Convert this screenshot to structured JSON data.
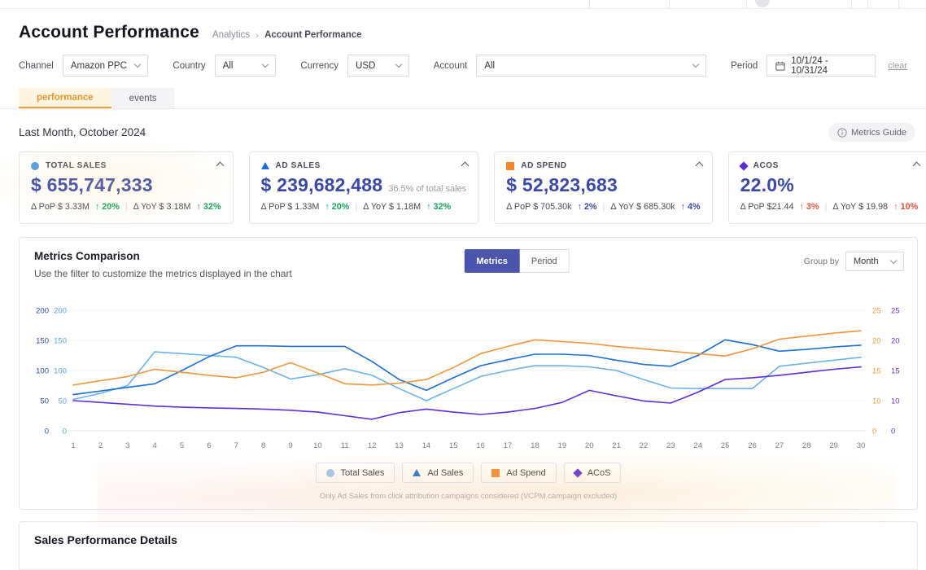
{
  "header": {
    "title": "Account Performance",
    "breadcrumb": {
      "parent": "Analytics",
      "separator": "›",
      "current": "Account Performance"
    }
  },
  "filters": {
    "channel": {
      "label": "Channel",
      "value": "Amazon PPC"
    },
    "country": {
      "label": "Country",
      "value": "All"
    },
    "currency": {
      "label": "Currency",
      "value": "USD"
    },
    "account": {
      "label": "Account",
      "value": "All"
    },
    "period": {
      "label": "Period",
      "value": "10/1/24 - 10/31/24"
    },
    "clear_label": "clear"
  },
  "tabs": {
    "performance": "performance",
    "events": "events"
  },
  "section": {
    "title": "Last Month, October 2024",
    "guide_label": "Metrics Guide"
  },
  "cards": [
    {
      "label": "TOTAL SALES",
      "value": "$ 655,747,333",
      "suffix": "",
      "pop_label": "Δ PoP $ 3.33M",
      "pop_delta": "↑ 20%",
      "yoy_label": "Δ YoY $ 3.18M",
      "yoy_delta": "↑ 32%",
      "delta_color": "#17a35c",
      "marker_color": "#519fdd"
    },
    {
      "label": "AD SALES",
      "value": "$ 239,682,488",
      "suffix": "36.5% of total sales",
      "pop_label": "Δ PoP $ 1.33M",
      "pop_delta": "↑ 20%",
      "yoy_label": "Δ YoY $ 1.18M",
      "yoy_delta": "↑ 32%",
      "delta_color": "#17a35c",
      "marker_color": "#1e6fd2"
    },
    {
      "label": "AD SPEND",
      "value": "$ 52,823,683",
      "suffix": "",
      "pop_label": "Δ PoP $ 705.30k",
      "pop_delta": "↑ 2%",
      "yoy_label": "Δ YoY $ 685.30k",
      "yoy_delta": "↑ 4%",
      "delta_color": "#3b49a5",
      "marker_color": "#f0892c"
    },
    {
      "label": "ACOS",
      "value": "22.0%",
      "suffix": "",
      "pop_label": "Δ PoP $21.44",
      "pop_delta": "↑ 3%",
      "yoy_label": "Δ YoY $ 19.98",
      "yoy_delta": "↑ 10%",
      "delta_color": "#e8503a",
      "marker_color": "#5b2fd4"
    }
  ],
  "comparison": {
    "title": "Metrics Comparison",
    "subtitle": "Use the filter to customize the metrics displayed in the chart",
    "toggle": {
      "metrics": "Metrics",
      "period": "Period"
    },
    "group_by": {
      "label": "Group by",
      "value": "Month"
    },
    "footnote": "Only Ad Sales from click attribution campaigns considered (VCPM campaign excluded)"
  },
  "chart_data": {
    "type": "line",
    "title": "Metrics Comparison",
    "x": [
      1,
      2,
      3,
      4,
      5,
      6,
      7,
      8,
      9,
      10,
      11,
      12,
      13,
      14,
      15,
      16,
      17,
      18,
      19,
      20,
      21,
      22,
      23,
      24,
      25,
      26,
      27,
      28,
      29,
      30
    ],
    "series": [
      {
        "name": "Total Sales",
        "axis": "left",
        "color": "#6cb2ea",
        "values": [
          52,
          62,
          75,
          131,
          128,
          125,
          122,
          105,
          86,
          93,
          103,
          92,
          70,
          50,
          70,
          90,
          100,
          108,
          108,
          106,
          100,
          85,
          71,
          70,
          70,
          70,
          107,
          112,
          117,
          122
        ]
      },
      {
        "name": "Ad Sales",
        "axis": "left",
        "color": "#1e6fd2",
        "values": [
          60,
          66,
          72,
          78,
          100,
          123,
          141,
          141,
          140,
          140,
          140,
          115,
          85,
          67,
          88,
          108,
          118,
          127,
          127,
          125,
          117,
          110,
          107,
          125,
          151,
          143,
          132,
          135,
          139,
          142
        ]
      },
      {
        "name": "Ad Spend",
        "axis": "left",
        "color": "#f0963c",
        "values": [
          76,
          83,
          90,
          102,
          97,
          92,
          88,
          97,
          113,
          96,
          78,
          76,
          79,
          85,
          105,
          128,
          140,
          151,
          148,
          145,
          140,
          136,
          132,
          128,
          124,
          136,
          152,
          157,
          162,
          166
        ]
      },
      {
        "name": "ACoS",
        "axis": "right",
        "color": "#5b2fd4",
        "values": [
          10,
          9.4,
          8.8,
          8.2,
          7.8,
          7.6,
          7.4,
          7.2,
          6.8,
          6.2,
          5,
          3.8,
          6,
          7.2,
          6.2,
          5.4,
          6.2,
          7.4,
          9.4,
          11.7,
          10.8,
          9.9,
          9.2,
          11.4,
          13.5,
          13.8,
          14.2,
          14.7,
          15.2,
          15.6
        ]
      }
    ],
    "left_axis": {
      "ticks": [
        200,
        150,
        100,
        50,
        0
      ],
      "tick_colors": [
        "#2b4a9e",
        "#58a3e2"
      ],
      "range": [
        0,
        200
      ]
    },
    "right_axis": {
      "ticks": [
        25,
        20,
        15,
        10,
        0
      ],
      "tick_colors": [
        "#f09a3a",
        "#5c35cc"
      ],
      "range": [
        0,
        25
      ]
    },
    "grid": true,
    "legend_position": "bottom"
  },
  "sales_details": {
    "title": "Sales Performance Details"
  }
}
